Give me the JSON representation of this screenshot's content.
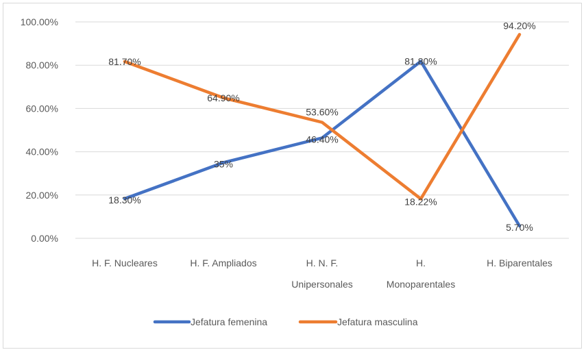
{
  "chart_data": {
    "type": "line",
    "categories": [
      [
        "H. F. Nucleares"
      ],
      [
        "H. F. Ampliados"
      ],
      [
        "H. N. F.",
        "Unipersonales"
      ],
      [
        "H.",
        "Monoparentales"
      ],
      [
        "H. Biparentales"
      ]
    ],
    "series": [
      {
        "name": "Jefatura femenina",
        "color": "#4472c4",
        "values": [
          18.3,
          35,
          46.4,
          81.8,
          5.7
        ],
        "labels": [
          "18.30%",
          "35%",
          "46.40%",
          "81.80%",
          "5.70%"
        ]
      },
      {
        "name": "Jefatura masculina",
        "color": "#ed7d31",
        "values": [
          81.7,
          64.9,
          53.6,
          18.22,
          94.2
        ],
        "labels": [
          "81.70%",
          "64.90%",
          "53.60%",
          "18.22%",
          "94.20%"
        ]
      }
    ],
    "ylim": [
      0,
      100
    ],
    "yticks": [
      "0.00%",
      "20.00%",
      "40.00%",
      "60.00%",
      "80.00%",
      "100.00%"
    ],
    "grid": true,
    "legend": "bottom"
  }
}
